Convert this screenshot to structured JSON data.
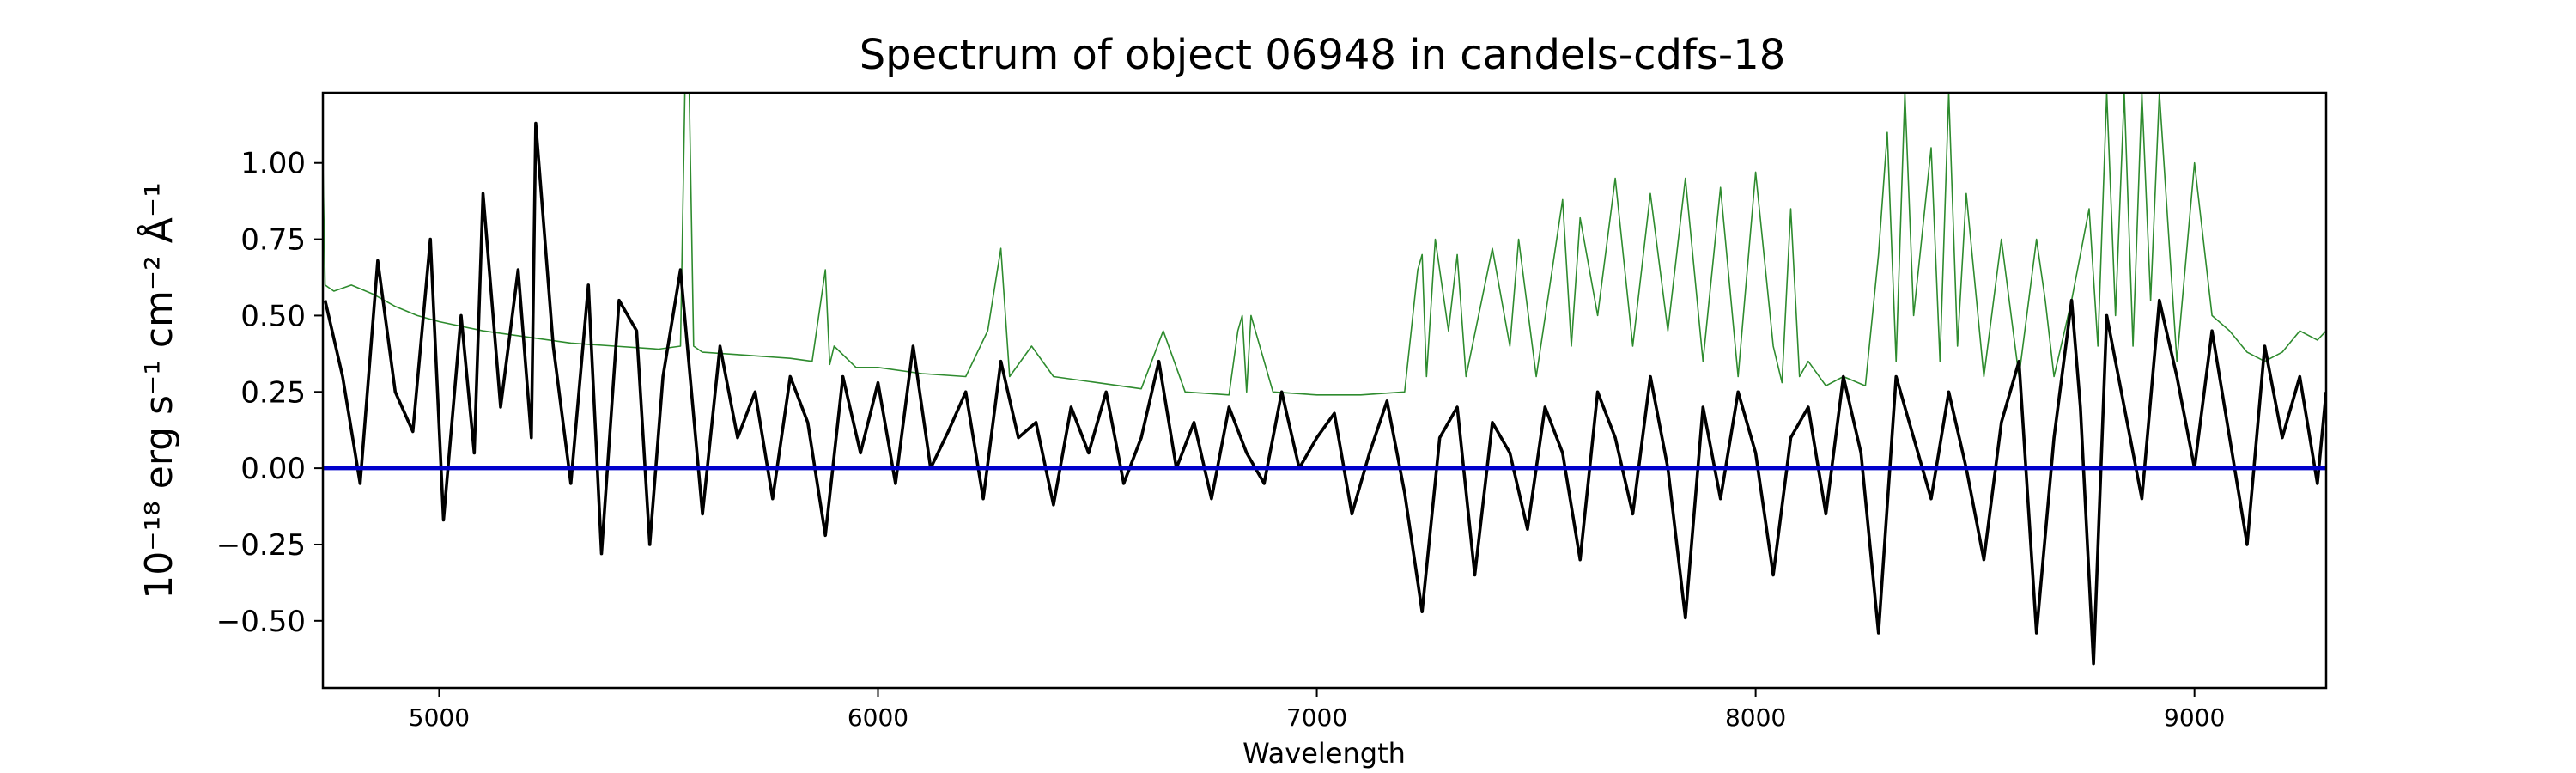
{
  "chart_data": {
    "type": "line",
    "title": "Spectrum of object 06948 in candels-cdfs-18",
    "xlabel": "Wavelength",
    "ylabel": "10⁻¹⁸ erg s⁻¹ cm⁻² Å⁻¹",
    "xlim": [
      4735,
      9300
    ],
    "ylim": [
      -0.72,
      1.23
    ],
    "x_ticks": [
      5000,
      6000,
      7000,
      8000,
      9000
    ],
    "y_ticks": [
      1.0,
      0.75,
      0.5,
      0.25,
      0.0,
      -0.25,
      -0.5
    ],
    "y_tick_labels": [
      "1.00",
      "0.75",
      "0.50",
      "0.25",
      "0.00",
      "−0.25",
      "−0.50"
    ],
    "colors": {
      "flux": "#000000",
      "error": "#2e8b2e",
      "zero": "#0000cc"
    },
    "series": [
      {
        "key": "flux",
        "x": [
          4740,
          4780,
          4820,
          4860,
          4900,
          4940,
          4980,
          5010,
          5050,
          5080,
          5100,
          5140,
          5180,
          5210,
          5220,
          5260,
          5300,
          5340,
          5370,
          5410,
          5450,
          5480,
          5510,
          5550,
          5600,
          5640,
          5680,
          5720,
          5760,
          5800,
          5840,
          5880,
          5920,
          5960,
          6000,
          6040,
          6080,
          6120,
          6160,
          6200,
          6240,
          6280,
          6320,
          6360,
          6400,
          6440,
          6480,
          6520,
          6560,
          6600,
          6640,
          6680,
          6720,
          6760,
          6800,
          6840,
          6880,
          6920,
          6960,
          7000,
          7040,
          7080,
          7120,
          7160,
          7200,
          7240,
          7280,
          7320,
          7360,
          7400,
          7440,
          7480,
          7520,
          7560,
          7600,
          7640,
          7680,
          7720,
          7760,
          7800,
          7840,
          7880,
          7920,
          7960,
          8000,
          8040,
          8080,
          8120,
          8160,
          8200,
          8240,
          8280,
          8320,
          8360,
          8400,
          8440,
          8480,
          8520,
          8560,
          8600,
          8640,
          8680,
          8720,
          8740,
          8770,
          8800,
          8840,
          8880,
          8920,
          8960,
          9000,
          9040,
          9080,
          9120,
          9160,
          9200,
          9240,
          9280,
          9300
        ],
        "y": [
          0.55,
          0.3,
          -0.05,
          0.68,
          0.25,
          0.12,
          0.75,
          -0.17,
          0.5,
          0.05,
          0.9,
          0.2,
          0.65,
          0.1,
          1.13,
          0.4,
          -0.05,
          0.6,
          -0.28,
          0.55,
          0.45,
          -0.25,
          0.3,
          0.65,
          -0.15,
          0.4,
          0.1,
          0.25,
          -0.1,
          0.3,
          0.15,
          -0.22,
          0.3,
          0.05,
          0.28,
          -0.05,
          0.4,
          0.0,
          0.12,
          0.25,
          -0.1,
          0.35,
          0.1,
          0.15,
          -0.12,
          0.2,
          0.05,
          0.25,
          -0.05,
          0.1,
          0.35,
          0.0,
          0.15,
          -0.1,
          0.2,
          0.05,
          -0.05,
          0.25,
          0.0,
          0.1,
          0.18,
          -0.15,
          0.05,
          0.22,
          -0.08,
          -0.47,
          0.1,
          0.2,
          -0.35,
          0.15,
          0.05,
          -0.2,
          0.2,
          0.05,
          -0.3,
          0.25,
          0.1,
          -0.15,
          0.3,
          0.0,
          -0.49,
          0.2,
          -0.1,
          0.25,
          0.05,
          -0.35,
          0.1,
          0.2,
          -0.15,
          0.3,
          0.05,
          -0.54,
          0.3,
          0.1,
          -0.1,
          0.25,
          0.0,
          -0.3,
          0.15,
          0.35,
          -0.54,
          0.1,
          0.55,
          0.2,
          -0.64,
          0.5,
          0.2,
          -0.1,
          0.55,
          0.3,
          0.0,
          0.45,
          0.1,
          -0.25,
          0.4,
          0.1,
          0.3,
          -0.05,
          0.25
        ],
        "style": "thick"
      },
      {
        "key": "error",
        "x": [
          4735,
          4740,
          4760,
          4800,
          4850,
          4900,
          4950,
          5000,
          5100,
          5200,
          5300,
          5400,
          5500,
          5550,
          5560,
          5570,
          5580,
          5600,
          5700,
          5800,
          5850,
          5880,
          5890,
          5900,
          5950,
          6000,
          6100,
          6200,
          6250,
          6280,
          6300,
          6350,
          6400,
          6500,
          6600,
          6650,
          6700,
          6800,
          6820,
          6830,
          6840,
          6850,
          6900,
          7000,
          7100,
          7200,
          7230,
          7240,
          7250,
          7270,
          7300,
          7320,
          7340,
          7400,
          7440,
          7460,
          7500,
          7560,
          7580,
          7600,
          7640,
          7680,
          7720,
          7760,
          7800,
          7840,
          7880,
          7920,
          7960,
          8000,
          8040,
          8060,
          8080,
          8100,
          8120,
          8160,
          8200,
          8250,
          8280,
          8300,
          8320,
          8340,
          8360,
          8400,
          8420,
          8440,
          8460,
          8480,
          8520,
          8560,
          8600,
          8640,
          8660,
          8680,
          8720,
          8760,
          8780,
          8800,
          8820,
          8840,
          8860,
          8880,
          8900,
          8920,
          8960,
          9000,
          9040,
          9080,
          9120,
          9160,
          9200,
          9240,
          9280,
          9300
        ],
        "y": [
          1.0,
          0.6,
          0.58,
          0.6,
          0.57,
          0.53,
          0.5,
          0.48,
          0.45,
          0.43,
          0.41,
          0.4,
          0.39,
          0.4,
          1.23,
          1.23,
          0.4,
          0.38,
          0.37,
          0.36,
          0.35,
          0.65,
          0.34,
          0.4,
          0.33,
          0.33,
          0.31,
          0.3,
          0.45,
          0.72,
          0.3,
          0.4,
          0.3,
          0.28,
          0.26,
          0.45,
          0.25,
          0.24,
          0.45,
          0.5,
          0.25,
          0.5,
          0.25,
          0.24,
          0.24,
          0.25,
          0.65,
          0.7,
          0.3,
          0.75,
          0.45,
          0.7,
          0.3,
          0.72,
          0.4,
          0.75,
          0.3,
          0.88,
          0.4,
          0.82,
          0.5,
          0.95,
          0.4,
          0.9,
          0.45,
          0.95,
          0.35,
          0.92,
          0.3,
          0.97,
          0.4,
          0.28,
          0.85,
          0.3,
          0.35,
          0.27,
          0.3,
          0.27,
          0.7,
          1.1,
          0.35,
          1.23,
          0.5,
          1.05,
          0.35,
          1.23,
          0.4,
          0.9,
          0.3,
          0.75,
          0.3,
          0.75,
          0.55,
          0.3,
          0.55,
          0.85,
          0.4,
          1.23,
          0.5,
          1.23,
          0.4,
          1.23,
          0.55,
          1.23,
          0.35,
          1.0,
          0.5,
          0.45,
          0.38,
          0.35,
          0.38,
          0.45,
          0.42,
          0.45
        ],
        "style": "thin"
      },
      {
        "key": "zero",
        "x": [
          4735,
          9300
        ],
        "y": [
          0.0,
          0.0
        ],
        "style": "flat"
      }
    ]
  }
}
